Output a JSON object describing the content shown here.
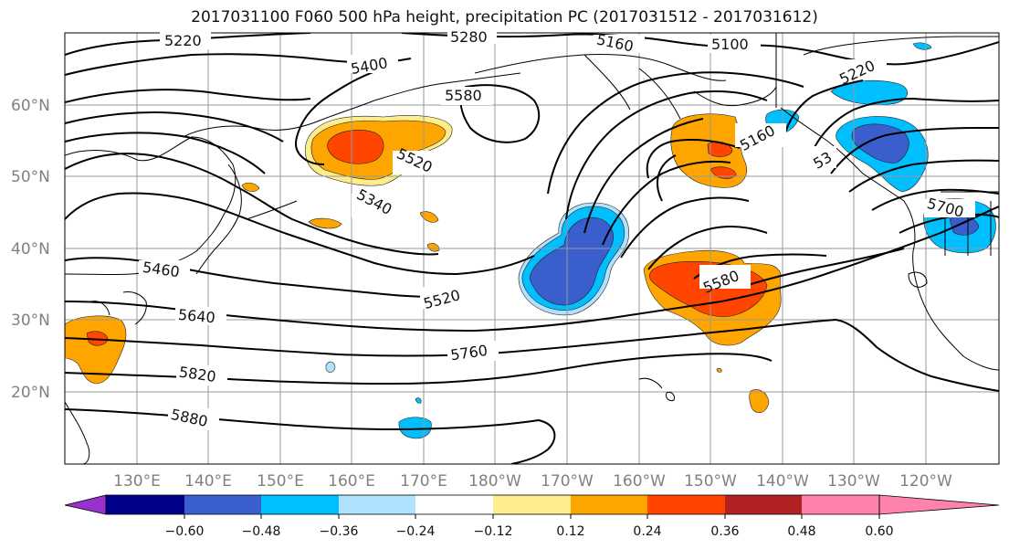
{
  "title": "2017031100 F060 500 hPa height, precipitation PC (2017031512 - 2017031612)",
  "lat_labels": [
    "60°N",
    "50°N",
    "40°N",
    "30°N",
    "20°N"
  ],
  "lon_labels": [
    "130°E",
    "140°E",
    "150°E",
    "160°E",
    "170°E",
    "180°W",
    "170°W",
    "160°W",
    "150°W",
    "140°W",
    "130°W",
    "120°W"
  ],
  "contour_labels": [
    "5220",
    "5280",
    "5160",
    "5100",
    "5220",
    "5400",
    "5580",
    "5520",
    "5160",
    "5340",
    "53",
    "5700",
    "5460",
    "5580",
    "5520",
    "5640",
    "5760",
    "5820",
    "5880"
  ],
  "colorbar": {
    "tick_labels": [
      "−0.60",
      "−0.48",
      "−0.36",
      "−0.24",
      "−0.12",
      "0.12",
      "0.24",
      "0.36",
      "0.48",
      "0.60"
    ],
    "colors": [
      "#9932cc",
      "#00008b",
      "#3a5fcd",
      "#00bfff",
      "#b0e2ff",
      "#ffffff",
      "#ffec8b",
      "#ffa500",
      "#ff4500",
      "#b22222",
      "#ff82ab"
    ]
  }
}
